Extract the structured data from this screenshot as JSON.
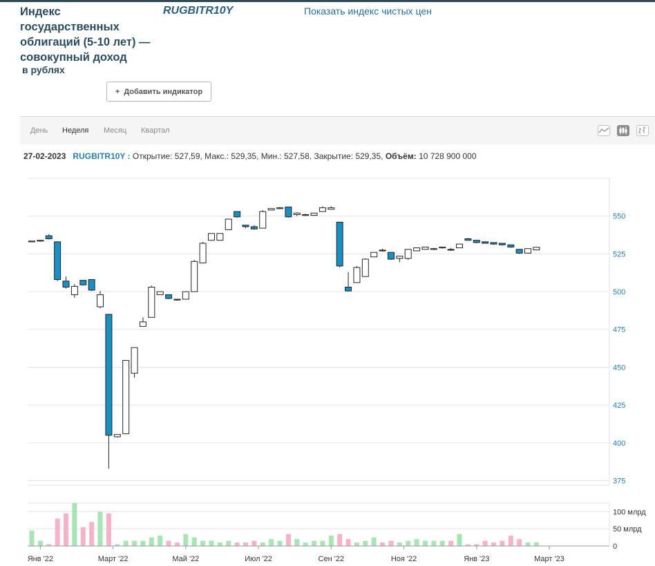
{
  "header": {
    "title": "Индекс государственных облигаций (5-10 лет) — совокупный доход",
    "subtitle": "в рублях",
    "ticker": "RUGBITR10Y",
    "clean_index_link": "Показать индекс чистых цен",
    "add_indicator": "Добавить индикатор"
  },
  "tabs": [
    "День",
    "Неделя",
    "Месяц",
    "Квартал"
  ],
  "active_tab": "Неделя",
  "chart_type_buttons": [
    "line-chart-icon",
    "candlestick-chart-icon",
    "ohlc-chart-icon"
  ],
  "info_line": {
    "date": "27-02-2023",
    "ticker": "RUGBITR10Y :",
    "ohlc_text": "Открытие: 527,59, Макс.: 529,35, Мин.: 527,58, Закрытие: 529,35,",
    "volume_label": "Объём:",
    "volume_value": "10 728 900 000"
  },
  "chart_data": {
    "type": "candlestick",
    "price_axis": {
      "ticks": [
        375,
        400,
        425,
        450,
        475,
        500,
        525,
        550
      ],
      "ylim": [
        372,
        575
      ]
    },
    "volume_axis": {
      "ticks": [
        "100 млрд",
        "50 млрд",
        "0"
      ],
      "tick_values": [
        100,
        50,
        0
      ],
      "unit": "млрд",
      "ylim": [
        0,
        125
      ]
    },
    "x_labels": [
      {
        "label": "Янв '22",
        "index": 1
      },
      {
        "label": "Март '22",
        "index": 9.5
      },
      {
        "label": "Май '22",
        "index": 18
      },
      {
        "label": "Июл '22",
        "index": 26.5
      },
      {
        "label": "Сен '22",
        "index": 35
      },
      {
        "label": "Ноя '22",
        "index": 43.5
      },
      {
        "label": "Янв '23",
        "index": 52
      },
      {
        "label": "Март '23",
        "index": 60.5
      }
    ],
    "colors": {
      "down_fill": "#1a8fc4",
      "up_fill": "#ffffff",
      "outline": "#222222",
      "grid": "#e3e3e3",
      "axis_text": "#2a7fa8",
      "volume_up": "#a8e4b4",
      "volume_down": "#f6b3c7"
    },
    "candles": [
      {
        "o": 533.5,
        "h": 533.5,
        "l": 533.5,
        "c": 533.5,
        "v": 45
      },
      {
        "o": 533.5,
        "h": 534.0,
        "l": 533.0,
        "c": 534.0,
        "v": 15
      },
      {
        "o": 537.0,
        "h": 538.0,
        "l": 534.5,
        "c": 535.0,
        "v": 5
      },
      {
        "o": 533.0,
        "h": 533.0,
        "l": 507.0,
        "c": 508.0,
        "v": 80
      },
      {
        "o": 507.0,
        "h": 510.0,
        "l": 502.0,
        "c": 503.0,
        "v": 95
      },
      {
        "o": 498.0,
        "h": 505.0,
        "l": 496.0,
        "c": 503.5,
        "v": 125
      },
      {
        "o": 507.5,
        "h": 507.5,
        "l": 504.0,
        "c": 504.5,
        "v": 55
      },
      {
        "o": 508.0,
        "h": 508.0,
        "l": 500.5,
        "c": 501.0,
        "v": 70
      },
      {
        "o": 490.0,
        "h": 500.5,
        "l": 489.0,
        "c": 498.0,
        "v": 100
      },
      {
        "o": 485.0,
        "h": 485.0,
        "l": 383.0,
        "c": 405.0,
        "v": 95
      },
      {
        "o": 404.0,
        "h": 405.5,
        "l": 403.5,
        "c": 405.5,
        "v": 5
      },
      {
        "o": 406.0,
        "h": 454.5,
        "l": 406.0,
        "c": 454.5,
        "v": 15
      },
      {
        "o": 446.0,
        "h": 463.0,
        "l": 443.0,
        "c": 463.0,
        "v": 15
      },
      {
        "o": 477.0,
        "h": 483.0,
        "l": 477.0,
        "c": 480.0,
        "v": 15
      },
      {
        "o": 483.0,
        "h": 504.0,
        "l": 483.0,
        "c": 503.0,
        "v": 25
      },
      {
        "o": 498.0,
        "h": 500.0,
        "l": 498.0,
        "c": 500.0,
        "v": 30
      },
      {
        "o": 498.0,
        "h": 498.0,
        "l": 495.0,
        "c": 495.5,
        "v": 15
      },
      {
        "o": 495.0,
        "h": 495.0,
        "l": 494.0,
        "c": 494.5,
        "v": 10
      },
      {
        "o": 495.0,
        "h": 500.0,
        "l": 495.0,
        "c": 500.0,
        "v": 35
      },
      {
        "o": 500.0,
        "h": 521.0,
        "l": 500.0,
        "c": 520.0,
        "v": 25
      },
      {
        "o": 519.0,
        "h": 533.0,
        "l": 519.0,
        "c": 532.0,
        "v": 15
      },
      {
        "o": 534.0,
        "h": 538.5,
        "l": 534.0,
        "c": 538.5,
        "v": 15
      },
      {
        "o": 534.0,
        "h": 538.5,
        "l": 534.0,
        "c": 538.5,
        "v": 10
      },
      {
        "o": 541.0,
        "h": 548.0,
        "l": 541.0,
        "c": 548.0,
        "v": 15
      },
      {
        "o": 553.0,
        "h": 553.0,
        "l": 549.0,
        "c": 549.5,
        "v": 10
      },
      {
        "o": 544.0,
        "h": 544.0,
        "l": 542.0,
        "c": 543.0,
        "v": 10
      },
      {
        "o": 543.0,
        "h": 544.0,
        "l": 541.0,
        "c": 541.5,
        "v": 15
      },
      {
        "o": 542.0,
        "h": 554.0,
        "l": 542.0,
        "c": 553.0,
        "v": 10
      },
      {
        "o": 554.0,
        "h": 555.0,
        "l": 554.0,
        "c": 555.0,
        "v": 20
      },
      {
        "o": 555.0,
        "h": 556.0,
        "l": 554.5,
        "c": 555.5,
        "v": 15
      },
      {
        "o": 556.0,
        "h": 556.0,
        "l": 549.0,
        "c": 549.5,
        "v": 35
      },
      {
        "o": 551.0,
        "h": 552.5,
        "l": 550.0,
        "c": 552.0,
        "v": 20
      },
      {
        "o": 550.5,
        "h": 551.5,
        "l": 550.0,
        "c": 551.0,
        "v": 10
      },
      {
        "o": 550.5,
        "h": 552.0,
        "l": 550.5,
        "c": 552.0,
        "v": 15
      },
      {
        "o": 553.0,
        "h": 556.5,
        "l": 553.0,
        "c": 555.5,
        "v": 15
      },
      {
        "o": 554.5,
        "h": 556.5,
        "l": 554.5,
        "c": 555.5,
        "v": 30
      },
      {
        "o": 546.0,
        "h": 546.0,
        "l": 516.0,
        "c": 517.0,
        "v": 35
      },
      {
        "o": 503.0,
        "h": 513.0,
        "l": 500.0,
        "c": 500.5,
        "v": 20
      },
      {
        "o": 506.0,
        "h": 517.0,
        "l": 506.0,
        "c": 516.0,
        "v": 10
      },
      {
        "o": 510.0,
        "h": 522.0,
        "l": 510.0,
        "c": 521.5,
        "v": 15
      },
      {
        "o": 523.0,
        "h": 526.0,
        "l": 523.0,
        "c": 526.0,
        "v": 25
      },
      {
        "o": 527.5,
        "h": 528.5,
        "l": 526.5,
        "c": 527.0,
        "v": 10
      },
      {
        "o": 526.0,
        "h": 526.0,
        "l": 521.0,
        "c": 521.5,
        "v": 15
      },
      {
        "o": 522.0,
        "h": 523.5,
        "l": 519.5,
        "c": 523.5,
        "v": 10
      },
      {
        "o": 522.0,
        "h": 528.0,
        "l": 521.0,
        "c": 528.0,
        "v": 15
      },
      {
        "o": 527.0,
        "h": 529.0,
        "l": 527.0,
        "c": 529.0,
        "v": 20
      },
      {
        "o": 528.0,
        "h": 529.5,
        "l": 528.0,
        "c": 529.5,
        "v": 15
      },
      {
        "o": 528.0,
        "h": 529.0,
        "l": 527.5,
        "c": 528.5,
        "v": 15
      },
      {
        "o": 529.0,
        "h": 529.5,
        "l": 528.5,
        "c": 529.5,
        "v": 15
      },
      {
        "o": 528.0,
        "h": 529.0,
        "l": 527.0,
        "c": 527.5,
        "v": 15
      },
      {
        "o": 529.0,
        "h": 531.5,
        "l": 529.0,
        "c": 531.5,
        "v": 35
      },
      {
        "o": 535.0,
        "h": 535.5,
        "l": 534.0,
        "c": 534.0,
        "v": 5
      },
      {
        "o": 534.0,
        "h": 534.0,
        "l": 532.0,
        "c": 532.5,
        "v": 5
      },
      {
        "o": 533.0,
        "h": 533.0,
        "l": 532.0,
        "c": 532.0,
        "v": 15
      },
      {
        "o": 532.5,
        "h": 532.5,
        "l": 531.0,
        "c": 531.5,
        "v": 10
      },
      {
        "o": 532.0,
        "h": 532.0,
        "l": 530.5,
        "c": 531.0,
        "v": 15
      },
      {
        "o": 531.0,
        "h": 531.0,
        "l": 529.0,
        "c": 529.5,
        "v": 30
      },
      {
        "o": 528.0,
        "h": 528.0,
        "l": 525.0,
        "c": 525.5,
        "v": 20
      },
      {
        "o": 525.5,
        "h": 528.5,
        "l": 525.5,
        "c": 528.5,
        "v": 10
      },
      {
        "o": 527.6,
        "h": 529.35,
        "l": 527.58,
        "c": 529.35,
        "v": 10.7
      }
    ]
  }
}
